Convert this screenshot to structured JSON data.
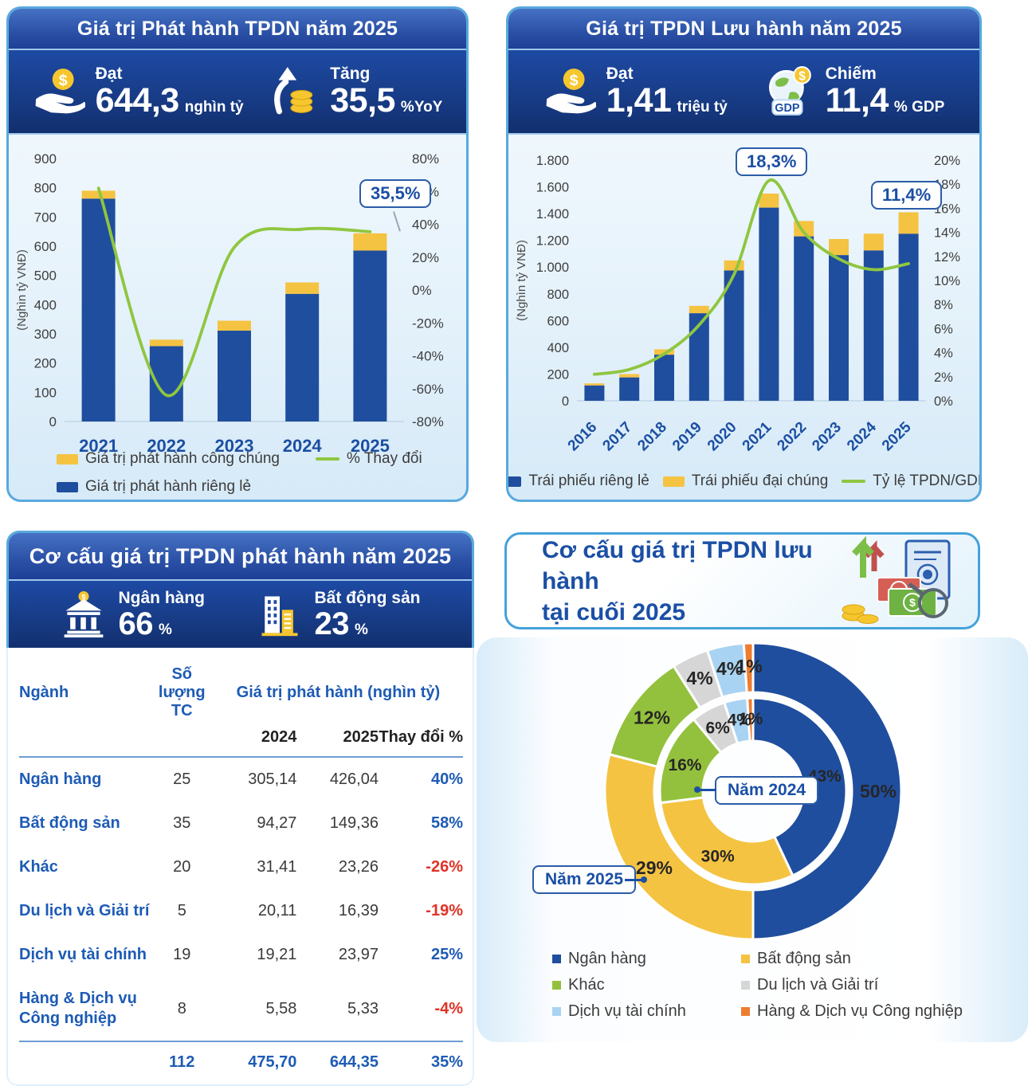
{
  "panel_issuance": {
    "title": "Giá trị Phát hành TPDN năm 2025",
    "stats": [
      {
        "icon": "hand-coin-icon",
        "label": "Đạt",
        "value": "644,3",
        "unit": "nghìn tỷ"
      },
      {
        "icon": "arrow-coins-icon",
        "label": "Tăng",
        "value": "35,5",
        "unit": "%YoY"
      }
    ],
    "chart_data": {
      "type": "bar+line",
      "ylabel_left": "(Nghìn tỷ VNĐ)",
      "categories": [
        "2021",
        "2022",
        "2023",
        "2024",
        "2025"
      ],
      "series": [
        {
          "name": "Giá trị phát hành riêng lẻ",
          "type": "bar",
          "color": "#1F4E9E",
          "values": [
            763,
            258,
            311,
            437,
            585
          ]
        },
        {
          "name": "Giá trị phát hành công chúng",
          "type": "bar",
          "color": "#F5C342",
          "values": [
            27,
            22,
            34,
            39,
            59
          ]
        },
        {
          "name": "% Thay đổi",
          "type": "line",
          "axis": "right",
          "color": "#8FC640",
          "values": [
            62,
            -64,
            26,
            37,
            35.5
          ]
        }
      ],
      "y_left": {
        "min": 0,
        "max": 900,
        "ticks": [
          "900",
          "800",
          "700",
          "600",
          "500",
          "400",
          "300",
          "200",
          "100",
          "0"
        ]
      },
      "y_right": {
        "min": -80,
        "max": 80,
        "ticks": [
          "80%",
          "60%",
          "40%",
          "20%",
          "0%",
          "-20%",
          "-40%",
          "-60%",
          "-80%"
        ]
      },
      "callout": "35,5%",
      "legend_position": "bottom",
      "grid": false
    },
    "legend": [
      {
        "label": "Giá trị phát hành công chúng",
        "color": "#F5C342",
        "marker": "swatch"
      },
      {
        "label": "% Thay đổi",
        "color": "#8FC640",
        "marker": "line"
      },
      {
        "label": "Giá trị phát hành riêng lẻ",
        "color": "#1F4E9E",
        "marker": "swatch"
      }
    ]
  },
  "panel_outstanding": {
    "title": "Giá trị TPDN Lưu hành năm 2025",
    "stats": [
      {
        "icon": "hand-coin-icon",
        "label": "Đạt",
        "value": "1,41",
        "unit": "triệu tỷ"
      },
      {
        "icon": "globe-gdp-icon",
        "label": "Chiếm",
        "value": "11,4",
        "unit": "% GDP"
      }
    ],
    "chart_data": {
      "type": "bar+line",
      "ylabel_left": "(Nghìn tỷ VNĐ)",
      "categories": [
        "2016",
        "2017",
        "2018",
        "2019",
        "2020",
        "2021",
        "2022",
        "2023",
        "2024",
        "2025"
      ],
      "series": [
        {
          "name": "Trái phiếu riêng lẻ",
          "type": "bar",
          "color": "#1F4E9E",
          "values": [
            115,
            175,
            345,
            655,
            975,
            1445,
            1230,
            1090,
            1125,
            1250
          ]
        },
        {
          "name": "Trái phiếu đại chúng",
          "type": "bar",
          "color": "#F5C342",
          "values": [
            15,
            25,
            40,
            55,
            75,
            105,
            115,
            120,
            125,
            160
          ]
        },
        {
          "name": "Tỷ lệ TPDN/GDP",
          "type": "line",
          "axis": "right",
          "color": "#8FC640",
          "values": [
            2.2,
            2.6,
            3.9,
            6.3,
            10.5,
            18.3,
            14.0,
            11.8,
            10.9,
            11.4
          ]
        }
      ],
      "y_left": {
        "min": 0,
        "max": 1800,
        "ticks": [
          "1.800",
          "1.600",
          "1.400",
          "1.200",
          "1.000",
          "800",
          "600",
          "400",
          "200",
          "0"
        ]
      },
      "y_right": {
        "min": 0,
        "max": 20,
        "ticks": [
          "20%",
          "18%",
          "16%",
          "14%",
          "12%",
          "10%",
          "8%",
          "6%",
          "4%",
          "2%",
          "0%"
        ]
      },
      "callouts": [
        "18,3%",
        "11,4%"
      ],
      "legend_position": "bottom",
      "grid": false
    },
    "legend": [
      {
        "label": "Trái phiếu riêng lẻ",
        "color": "#1F4E9E",
        "marker": "swatch"
      },
      {
        "label": "Trái phiếu đại chúng",
        "color": "#F5C342",
        "marker": "swatch"
      },
      {
        "label": "Tỷ lệ TPDN/GDP",
        "color": "#8FC640",
        "marker": "line"
      }
    ]
  },
  "panel_structure": {
    "title": "Cơ cấu giá trị TPDN phát hành năm 2025",
    "stats": [
      {
        "icon": "bank-icon",
        "label": "Ngân hàng",
        "value": "66",
        "unit": "%"
      },
      {
        "icon": "building-icon",
        "label": "Bất động sản",
        "value": "23",
        "unit": "%"
      }
    ],
    "table": {
      "col_nganh": "Ngành",
      "col_soluong": "Số lượng TC",
      "col_group": "Giá trị phát hành (nghìn tỷ)",
      "col_2024": "2024",
      "col_2025": "2025",
      "col_change": "Thay đổi %",
      "rows": [
        {
          "name": "Ngân hàng",
          "count": "25",
          "v2024": "305,14",
          "v2025": "426,04",
          "change": "40%"
        },
        {
          "name": "Bất động sản",
          "count": "35",
          "v2024": "94,27",
          "v2025": "149,36",
          "change": "58%"
        },
        {
          "name": "Khác",
          "count": "20",
          "v2024": "31,41",
          "v2025": "23,26",
          "change": "-26%"
        },
        {
          "name": "Du lịch và Giải trí",
          "count": "5",
          "v2024": "20,11",
          "v2025": "16,39",
          "change": "-19%"
        },
        {
          "name": "Dịch vụ tài chính",
          "count": "19",
          "v2024": "19,21",
          "v2025": "23,97",
          "change": "25%"
        },
        {
          "name": "Hàng & Dịch vụ\nCông nghiệp",
          "count": "8",
          "v2024": "5,58",
          "v2025": "5,33",
          "change": "-4%"
        }
      ],
      "total": {
        "count": "112",
        "v2024": "475,70",
        "v2025": "644,35",
        "change": "35%"
      }
    }
  },
  "panel_donut": {
    "title": "Cơ cấu giá trị TPDN lưu hành\ntại cuối 2025",
    "chart_data": {
      "type": "donut",
      "categories": [
        "Ngân hàng",
        "Bất động sản",
        "Khác",
        "Du lịch và Giải trí",
        "Dịch vụ tài chính",
        "Hàng & Dịch vụ Công nghiệp"
      ],
      "colors": [
        "#1F4E9E",
        "#F5C342",
        "#94C13D",
        "#D6D6D6",
        "#A9D3F2",
        "#ED7D31"
      ],
      "series": [
        {
          "name": "Năm 2025",
          "ring": "outer",
          "values": [
            50,
            29,
            12,
            4,
            4,
            1
          ]
        },
        {
          "name": "Năm 2024",
          "ring": "inner",
          "values": [
            43,
            30,
            16,
            6,
            4,
            1
          ]
        }
      ],
      "legend_position": "bottom"
    },
    "callout_2024": "Năm 2024",
    "callout_2025": "Năm 2025",
    "legend": [
      {
        "label": "Ngân hàng",
        "color": "#1F4E9E"
      },
      {
        "label": "Bất động sản",
        "color": "#F5C342"
      },
      {
        "label": "Khác",
        "color": "#94C13D"
      },
      {
        "label": "Du lịch và Giải trí",
        "color": "#D6D6D6"
      },
      {
        "label": "Dịch vụ tài chính",
        "color": "#A9D3F2"
      },
      {
        "label": "Hàng & Dịch vụ Công nghiệp",
        "color": "#ED7D31"
      }
    ]
  }
}
